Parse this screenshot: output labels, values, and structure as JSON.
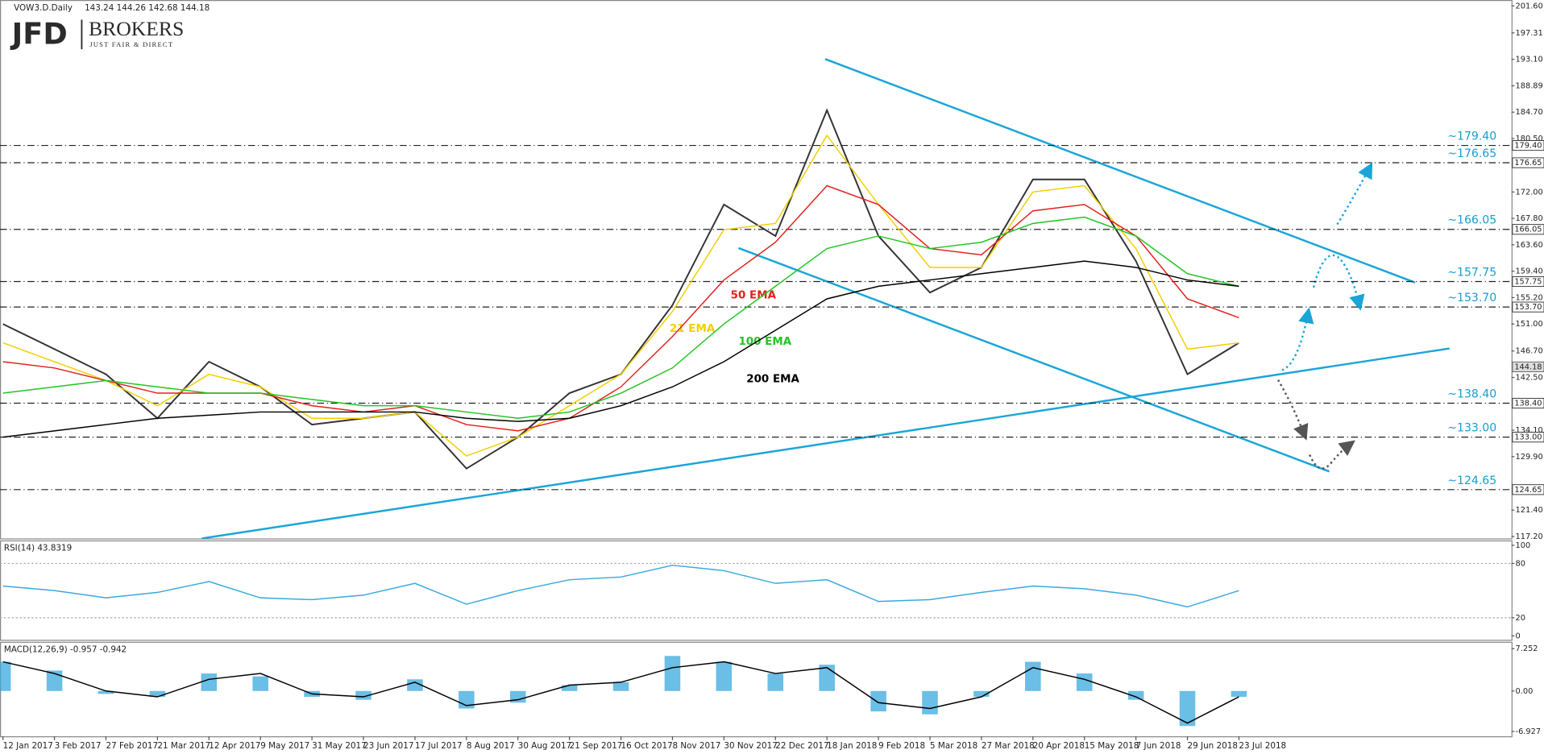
{
  "logo": {
    "mark": "JFD",
    "name": "BROKERS",
    "tagline": "JUST FAIR & DIRECT"
  },
  "chart_data": [
    {
      "type": "line",
      "title": "VOW3.D.Daily",
      "quote": "143.24 144.26 142.68 144.18",
      "categories": [
        "12 Jan 2017",
        "3 Feb 2017",
        "27 Feb 2017",
        "21 Mar 2017",
        "12 Apr 2017",
        "9 May 2017",
        "31 May 2017",
        "23 Jun 2017",
        "17 Jul 2017",
        "8 Aug 2017",
        "30 Aug 2017",
        "21 Sep 2017",
        "16 Oct 2017",
        "8 Nov 2017",
        "30 Nov 2017",
        "22 Dec 2017",
        "18 Jan 2018",
        "9 Feb 2018",
        "5 Mar 2018",
        "27 Mar 2018",
        "20 Apr 2018",
        "15 May 2018",
        "7 Jun 2018",
        "29 Jun 2018",
        "23 Jul 2018"
      ],
      "series": [
        {
          "color": "#333333",
          "values": [
            151,
            147,
            143,
            136,
            145,
            141,
            135,
            136,
            137,
            128,
            133,
            140,
            143,
            154,
            170,
            165,
            185,
            165,
            156,
            160,
            174,
            174,
            161,
            143,
            148
          ]
        },
        {
          "name": "21 EMA",
          "color": "#f2cf00",
          "values": [
            148,
            145,
            142,
            138,
            143,
            141,
            136,
            136,
            137,
            130,
            133,
            138,
            143,
            153,
            166,
            167,
            181,
            170,
            160,
            160,
            172,
            173,
            163,
            147,
            148
          ]
        },
        {
          "name": "50 EMA",
          "color": "#e3201b",
          "values": [
            145,
            144,
            142,
            140,
            140,
            140,
            138,
            137,
            138,
            135,
            134,
            136,
            141,
            149,
            158,
            164,
            173,
            170,
            163,
            162,
            169,
            170,
            165,
            155,
            152
          ]
        },
        {
          "name": "100 EMA",
          "color": "#22c522",
          "values": [
            140,
            141,
            142,
            141,
            140,
            140,
            139,
            138,
            138,
            137,
            136,
            137,
            140,
            144,
            151,
            157,
            163,
            165,
            163,
            164,
            167,
            168,
            165,
            159,
            157
          ]
        },
        {
          "name": "200 EMA",
          "color": "#000000",
          "values": [
            133,
            134,
            135,
            136,
            136.5,
            137,
            137,
            137,
            137,
            136,
            135.5,
            136,
            138,
            141,
            145,
            150,
            155,
            157,
            158,
            159,
            160,
            161,
            160,
            158,
            157
          ]
        }
      ],
      "ylim": [
        117.2,
        201.6
      ],
      "yticks": [
        {
          "value": 201.6,
          "label": "201.60"
        },
        197.31,
        {
          "value": 193.1,
          "label": "193.10"
        },
        188.89,
        {
          "value": 184.7,
          "label": "184.70"
        },
        {
          "value": 180.5,
          "label": "180.50"
        },
        {
          "value": 172,
          "label": "172.00"
        },
        {
          "value": 167.8,
          "label": "167.80"
        },
        {
          "value": 163.6,
          "label": "163.60"
        },
        {
          "value": 159.4,
          "label": "159.40"
        },
        {
          "value": 155.2,
          "label": "155.20"
        },
        {
          "value": 151,
          "label": "151.00"
        },
        {
          "value": 146.7,
          "label": "146.70"
        },
        {
          "value": 142.5,
          "label": "142.50"
        },
        {
          "value": 134.1,
          "label": "134.10"
        },
        {
          "value": 129.9,
          "label": "129.90"
        },
        {
          "value": 121.4,
          "label": "121.40"
        },
        {
          "value": 117.2,
          "label": "117.20"
        }
      ],
      "levels": [
        {
          "value": 179.4,
          "label": "~179.40",
          "axis_label": "179.40"
        },
        {
          "value": 176.65,
          "label": "~176.65",
          "axis_label": "176.65"
        },
        {
          "value": 166.05,
          "label": "~166.05",
          "axis_label": "166.05"
        },
        {
          "value": 157.75,
          "label": "~157.75",
          "axis_label": "157.75"
        },
        {
          "value": 153.7,
          "label": "~153.70",
          "axis_label": "153.70"
        },
        {
          "value": 138.4,
          "label": "~138.40",
          "axis_label": "138.40"
        },
        {
          "value": 133,
          "label": "~133.00",
          "axis_label": "133.00"
        },
        {
          "value": 124.65,
          "label": "~124.65",
          "axis_label": "124.65"
        }
      ],
      "last_price": {
        "value": 144.18,
        "label": "144.18"
      },
      "level_color": "#1a9cd3"
    },
    {
      "type": "line",
      "title": "RSI(14) 43.8319",
      "series": [
        {
          "color": "#3aa8dc",
          "values": [
            55,
            50,
            42,
            48,
            60,
            42,
            40,
            45,
            58,
            35,
            50,
            62,
            65,
            78,
            72,
            58,
            62,
            38,
            40,
            48,
            55,
            52,
            45,
            32,
            50
          ]
        }
      ],
      "ylim": [
        0,
        100
      ],
      "yticks": [
        0,
        20,
        80,
        100
      ],
      "guides": [
        20,
        80
      ]
    },
    {
      "type": "bar",
      "title": "MACD(12,26,9) -0.957 -0.942",
      "series": [
        {
          "kind": "bar",
          "color": "#3aa8dc",
          "values": [
            5,
            3.5,
            -0.5,
            -1,
            3,
            2.5,
            -1,
            -1.5,
            2,
            -3,
            -2,
            1,
            1.5,
            6,
            5,
            3,
            4.5,
            -3.5,
            -4,
            -1,
            5,
            3,
            -1.5,
            -6,
            -1
          ]
        },
        {
          "kind": "line",
          "color": "#000000",
          "values": [
            5,
            3,
            0,
            -1,
            2,
            3,
            -0.5,
            -1,
            1.5,
            -2.5,
            -1.5,
            1,
            1.5,
            4,
            5,
            3,
            4,
            -2,
            -3,
            -1,
            4,
            2,
            -1,
            -5.5,
            -1
          ]
        }
      ],
      "ylim": [
        -7.76,
        8.43
      ],
      "yticks": [
        7.252,
        {
          "value": 0,
          "label": "0.00"
        },
        -6.927
      ]
    }
  ]
}
